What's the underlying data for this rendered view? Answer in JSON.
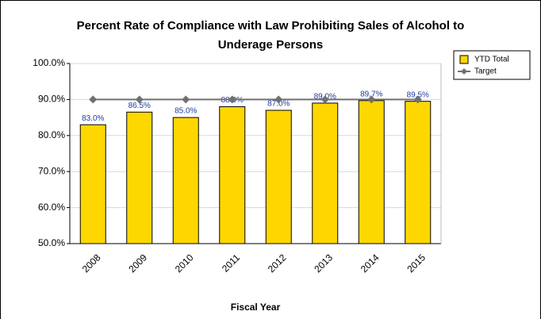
{
  "chart_data": {
    "type": "bar",
    "title": "Percent Rate of Compliance with Law Prohibiting Sales of Alcohol to Underage Persons",
    "x_label": "Fiscal Year",
    "categories": [
      "2008",
      "2009",
      "2010",
      "2011",
      "2012",
      "2013",
      "2014",
      "2015"
    ],
    "series": [
      {
        "name": "YTD Total",
        "type": "bar",
        "color": "#ffd700",
        "values": [
          83.0,
          86.5,
          85.0,
          88.0,
          87.0,
          89.0,
          89.7,
          89.5
        ],
        "value_labels": [
          "83.0%",
          "86.5%",
          "85.0%",
          "88.0%",
          "87.0%",
          "89.0%",
          "89.7%",
          "89.5%"
        ]
      },
      {
        "name": "Target",
        "type": "line",
        "color": "#707070",
        "values": [
          90,
          90,
          90,
          90,
          90,
          90,
          90,
          90
        ]
      }
    ],
    "ylim": [
      50,
      100
    ],
    "yticks": [
      {
        "value": 50,
        "label": "50.0%"
      },
      {
        "value": 60,
        "label": "60.0%"
      },
      {
        "value": 70,
        "label": "70.0%"
      },
      {
        "value": 80,
        "label": "80.0%"
      },
      {
        "value": 90,
        "label": "90.0%"
      },
      {
        "value": 100,
        "label": "100.0%"
      }
    ],
    "grid": true,
    "legend": "right"
  }
}
